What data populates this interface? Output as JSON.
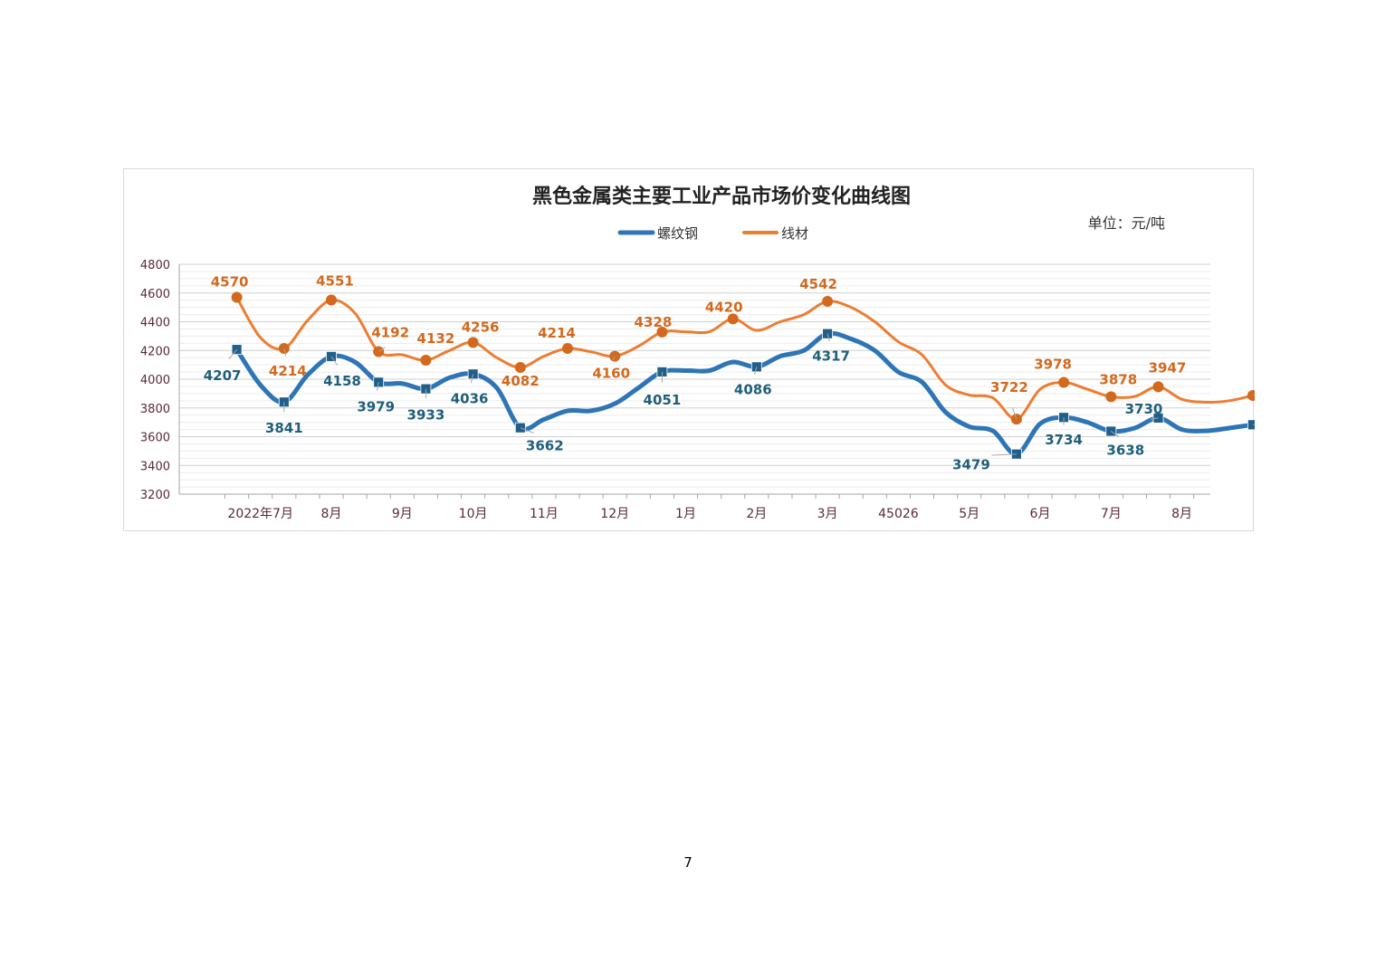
{
  "page": {
    "number": "7"
  },
  "chart_data": {
    "type": "line",
    "title": "黑色金属类主要工业产品市场价变化曲线图",
    "unit": "单位：元/吨",
    "ylim": [
      3200,
      4800
    ],
    "yticks": [
      3200,
      3400,
      3600,
      3800,
      4000,
      4200,
      4400,
      4600,
      4800
    ],
    "xlim": [
      0,
      44
    ],
    "x_tick_labels": [
      {
        "x": 2,
        "label": "2022年7月"
      },
      {
        "x": 5,
        "label": "8月"
      },
      {
        "x": 8,
        "label": "9月"
      },
      {
        "x": 11,
        "label": "10月"
      },
      {
        "x": 14,
        "label": "11月"
      },
      {
        "x": 17,
        "label": "12月"
      },
      {
        "x": 20,
        "label": "1月"
      },
      {
        "x": 23,
        "label": "2月"
      },
      {
        "x": 26,
        "label": "3月"
      },
      {
        "x": 29,
        "label": "45026"
      },
      {
        "x": 32,
        "label": "5月"
      },
      {
        "x": 35,
        "label": "6月"
      },
      {
        "x": 38,
        "label": "7月"
      },
      {
        "x": 41,
        "label": "8月"
      }
    ],
    "grid": true,
    "legend_position": "top-center",
    "series": [
      {
        "name": "螺纹钢",
        "color": "#2e75b6",
        "label_color": "#1f5f7a",
        "marker": "square",
        "points": [
          [
            1,
            4207
          ],
          [
            2,
            3960
          ],
          [
            3,
            3841
          ],
          [
            4,
            4030
          ],
          [
            5,
            4158
          ],
          [
            6,
            4120
          ],
          [
            7,
            3979
          ],
          [
            8,
            3970
          ],
          [
            9,
            3933
          ],
          [
            10,
            4010
          ],
          [
            11,
            4036
          ],
          [
            12,
            3940
          ],
          [
            13,
            3662
          ],
          [
            14,
            3720
          ],
          [
            15,
            3780
          ],
          [
            16,
            3780
          ],
          [
            17,
            3830
          ],
          [
            18,
            3940
          ],
          [
            19,
            4051
          ],
          [
            20,
            4060
          ],
          [
            21,
            4060
          ],
          [
            22,
            4120
          ],
          [
            23,
            4086
          ],
          [
            24,
            4160
          ],
          [
            25,
            4200
          ],
          [
            26,
            4317
          ],
          [
            27,
            4280
          ],
          [
            28,
            4200
          ],
          [
            29,
            4050
          ],
          [
            30,
            3980
          ],
          [
            31,
            3770
          ],
          [
            32,
            3670
          ],
          [
            33,
            3640
          ],
          [
            34,
            3479
          ],
          [
            35,
            3690
          ],
          [
            36,
            3734
          ],
          [
            37,
            3700
          ],
          [
            38,
            3638
          ],
          [
            39,
            3660
          ],
          [
            40,
            3730
          ],
          [
            41,
            3650
          ],
          [
            42,
            3640
          ],
          [
            43,
            3660
          ],
          [
            44,
            3683
          ]
        ],
        "labels": [
          {
            "x": 1,
            "value": "4207"
          },
          {
            "x": 3,
            "value": "3841"
          },
          {
            "x": 5,
            "value": "4158"
          },
          {
            "x": 7,
            "value": "3979"
          },
          {
            "x": 9,
            "value": "3933"
          },
          {
            "x": 11,
            "value": "4036"
          },
          {
            "x": 13,
            "value": "3662"
          },
          {
            "x": 19,
            "value": "4051"
          },
          {
            "x": 23,
            "value": "4086"
          },
          {
            "x": 26,
            "value": "4317"
          },
          {
            "x": 34,
            "value": "3479"
          },
          {
            "x": 36,
            "value": "3734"
          },
          {
            "x": 38,
            "value": "3638"
          },
          {
            "x": 40,
            "value": "3730"
          },
          {
            "x": 44,
            "value": "3683"
          }
        ]
      },
      {
        "name": "线材",
        "color": "#ed7d31",
        "label_color": "#d2691e",
        "marker": "circle",
        "points": [
          [
            1,
            4570
          ],
          [
            2,
            4290
          ],
          [
            3,
            4214
          ],
          [
            4,
            4410
          ],
          [
            5,
            4551
          ],
          [
            6,
            4460
          ],
          [
            7,
            4192
          ],
          [
            8,
            4170
          ],
          [
            9,
            4132
          ],
          [
            10,
            4200
          ],
          [
            11,
            4256
          ],
          [
            12,
            4150
          ],
          [
            13,
            4082
          ],
          [
            14,
            4160
          ],
          [
            15,
            4214
          ],
          [
            16,
            4190
          ],
          [
            17,
            4160
          ],
          [
            18,
            4230
          ],
          [
            19,
            4328
          ],
          [
            20,
            4330
          ],
          [
            21,
            4330
          ],
          [
            22,
            4420
          ],
          [
            23,
            4340
          ],
          [
            24,
            4400
          ],
          [
            25,
            4450
          ],
          [
            26,
            4542
          ],
          [
            27,
            4500
          ],
          [
            28,
            4400
          ],
          [
            29,
            4260
          ],
          [
            30,
            4170
          ],
          [
            31,
            3960
          ],
          [
            32,
            3890
          ],
          [
            33,
            3870
          ],
          [
            34,
            3722
          ],
          [
            35,
            3930
          ],
          [
            36,
            3978
          ],
          [
            37,
            3930
          ],
          [
            38,
            3878
          ],
          [
            39,
            3880
          ],
          [
            40,
            3947
          ],
          [
            41,
            3860
          ],
          [
            42,
            3840
          ],
          [
            43,
            3850
          ],
          [
            44,
            3887
          ]
        ],
        "labels": [
          {
            "x": 1,
            "value": "4570"
          },
          {
            "x": 3,
            "value": "4214"
          },
          {
            "x": 5,
            "value": "4551"
          },
          {
            "x": 7,
            "value": "4192"
          },
          {
            "x": 9,
            "value": "4132"
          },
          {
            "x": 11,
            "value": "4256"
          },
          {
            "x": 13,
            "value": "4082"
          },
          {
            "x": 15,
            "value": "4214"
          },
          {
            "x": 17,
            "value": "4160"
          },
          {
            "x": 19,
            "value": "4328"
          },
          {
            "x": 22,
            "value": "4420"
          },
          {
            "x": 26,
            "value": "4542"
          },
          {
            "x": 34,
            "value": "3722"
          },
          {
            "x": 36,
            "value": "3978"
          },
          {
            "x": 38,
            "value": "3878"
          },
          {
            "x": 40,
            "value": "3947"
          },
          {
            "x": 44,
            "value": "3887"
          }
        ]
      }
    ]
  }
}
